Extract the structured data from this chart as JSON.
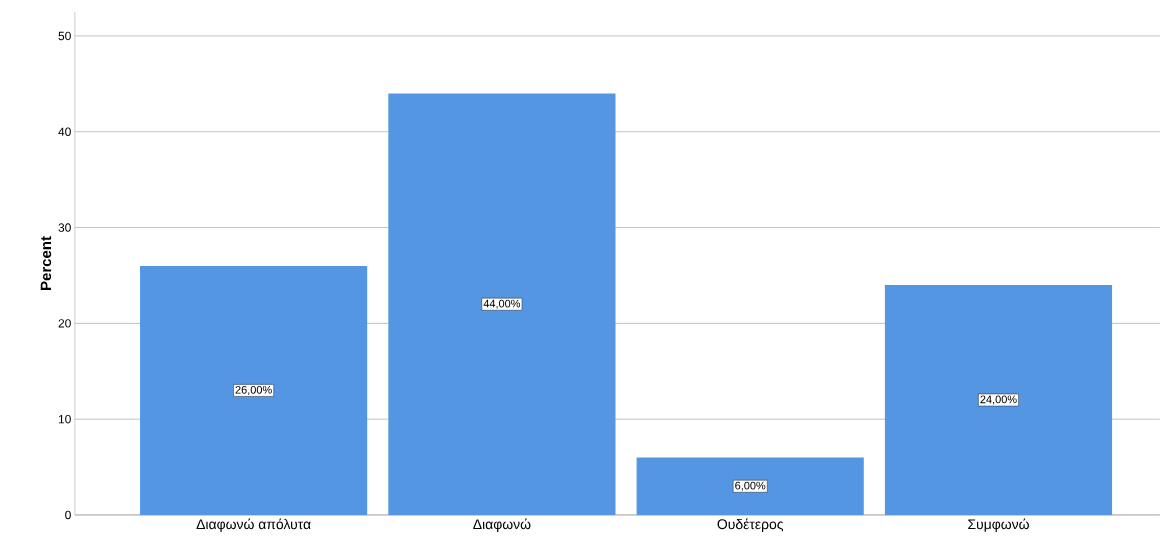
{
  "chart_data": {
    "type": "bar",
    "ylabel": "Percent",
    "categories": [
      "Διαφωνώ απόλυτα",
      "Διαφωνώ",
      "Ουδέτερος",
      "Συμφωνώ"
    ],
    "values": [
      26,
      44,
      6,
      24
    ],
    "value_labels": [
      "26,00%",
      "44,00%",
      "6,00%",
      "24,00%"
    ],
    "color": "#5596e3",
    "ylim": [
      0,
      52.5
    ],
    "yticks": [
      0,
      10,
      20,
      30,
      40,
      50
    ],
    "grid": "y"
  }
}
